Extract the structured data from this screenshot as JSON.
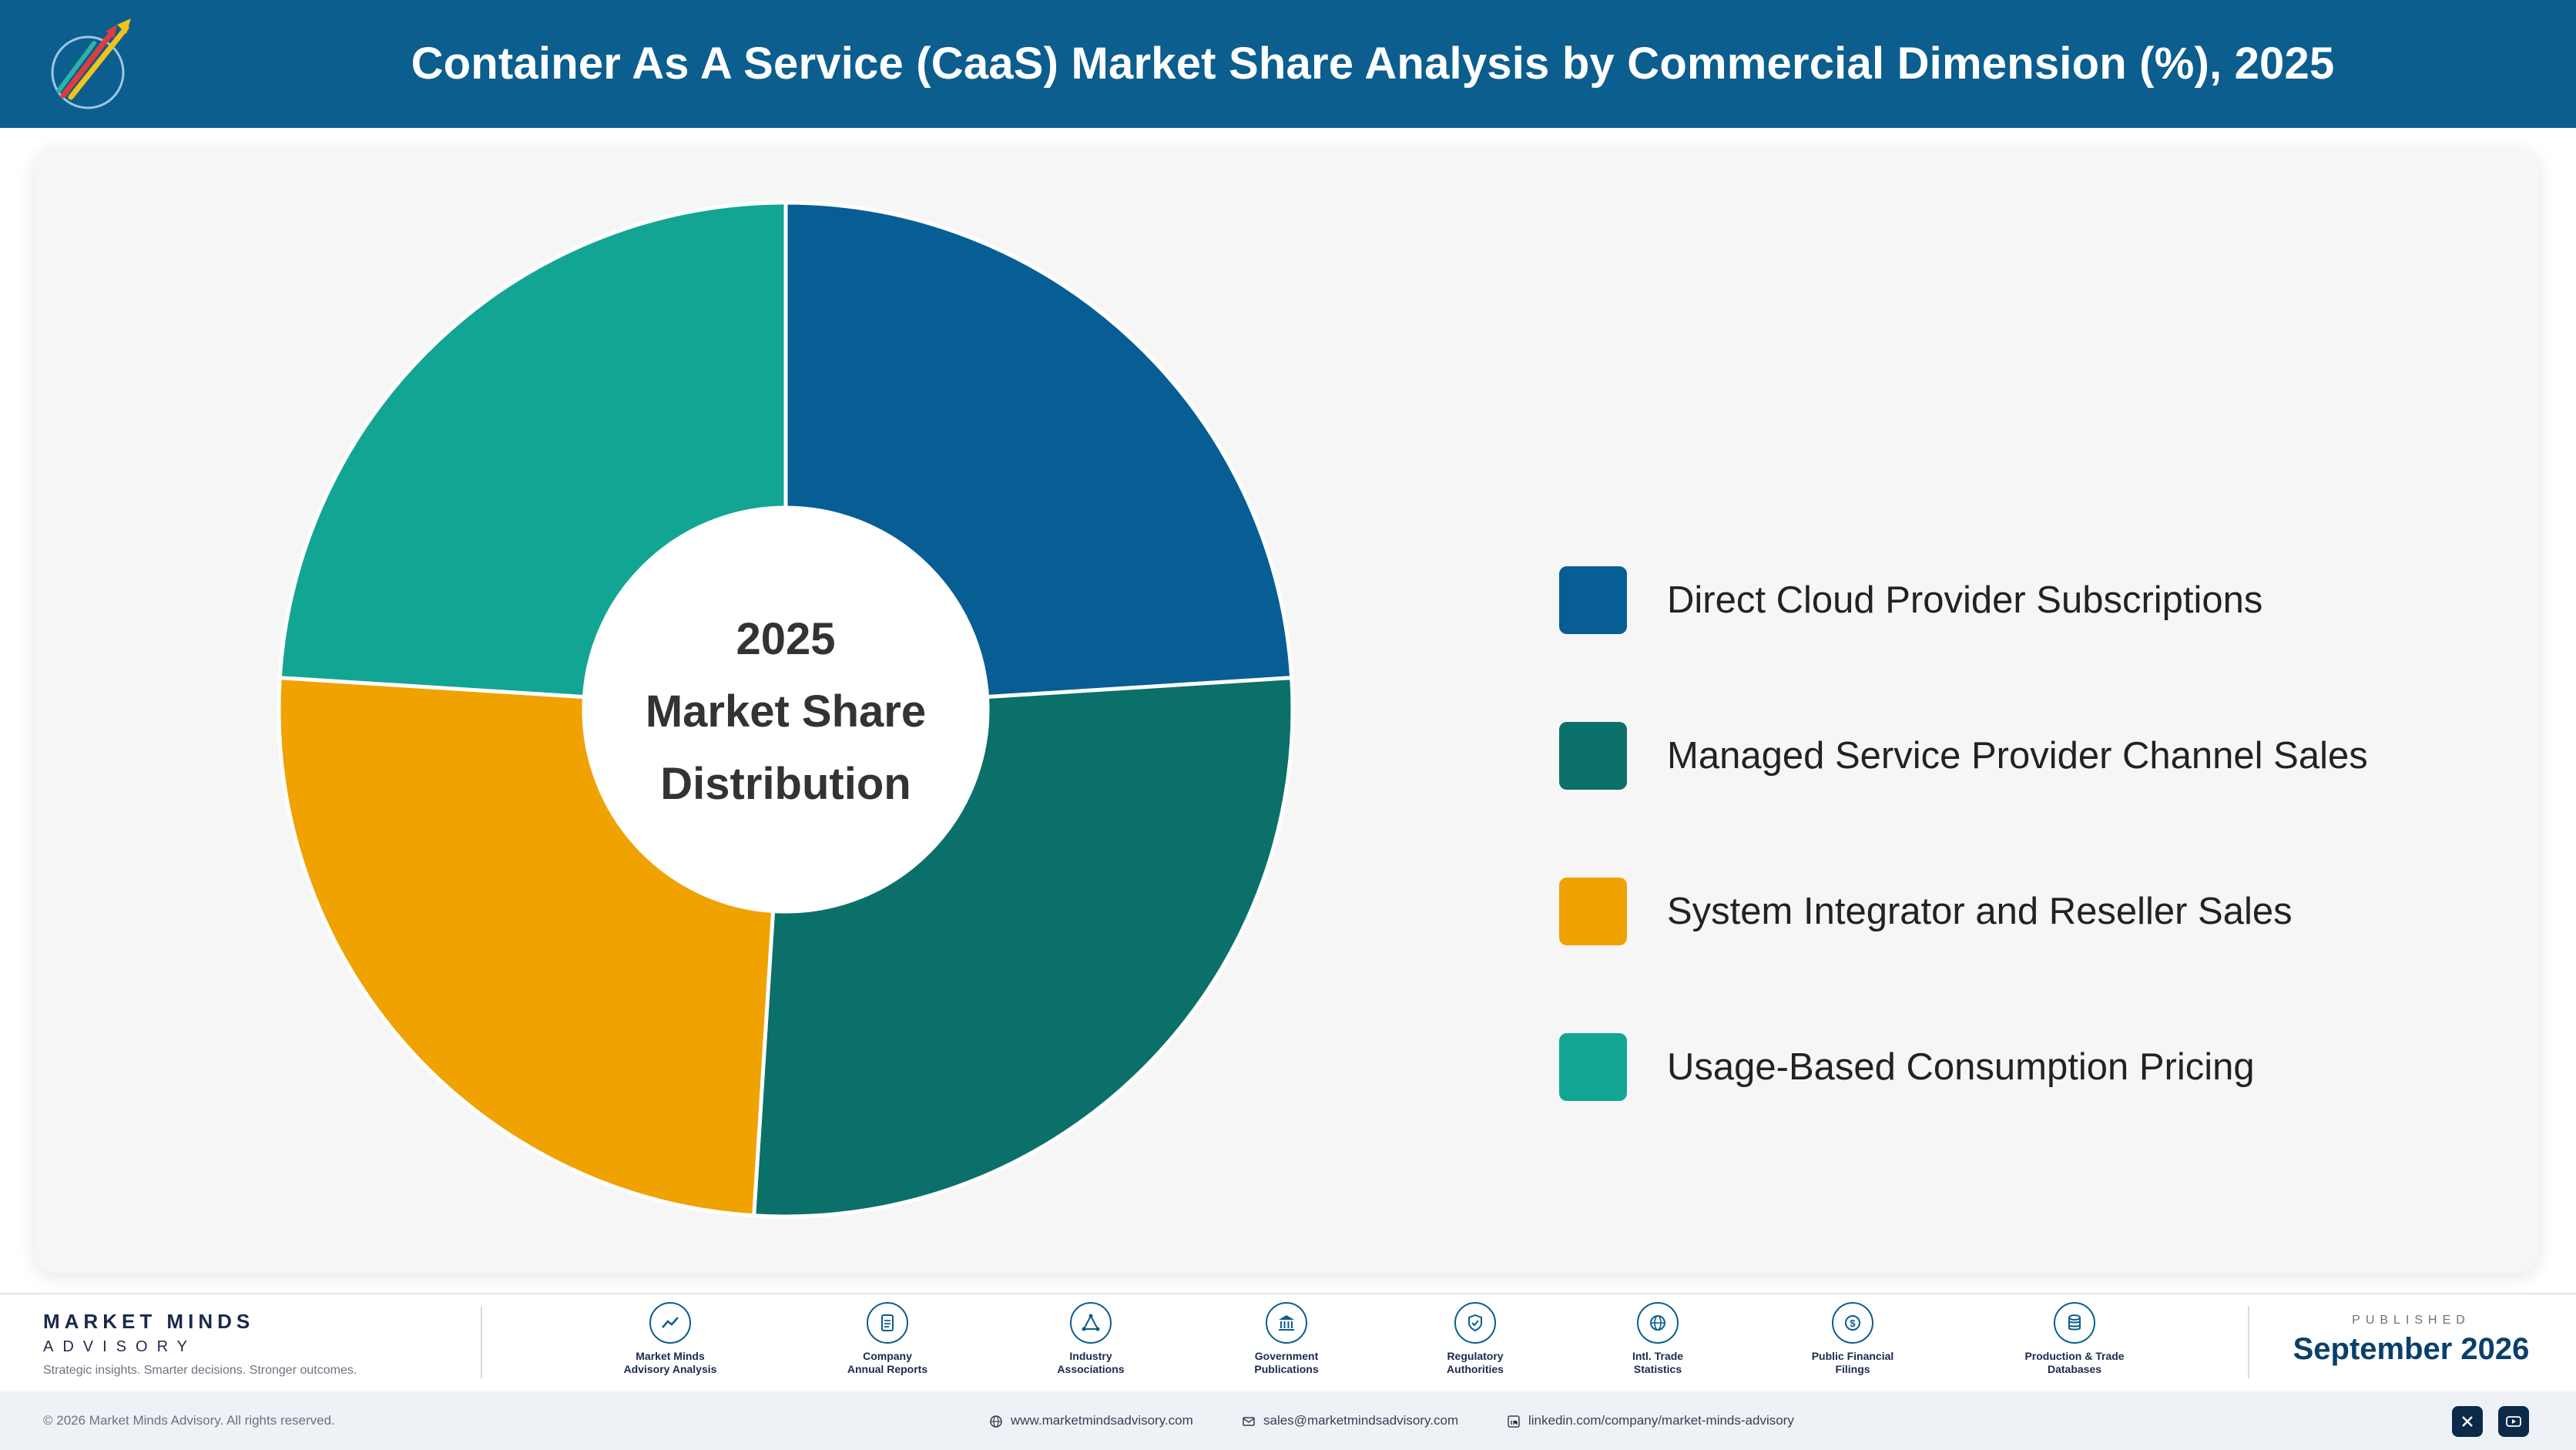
{
  "header": {
    "title": "Container As A Service (CaaS) Market Share Analysis by Commercial Dimension (%), 2025"
  },
  "chart_data": {
    "type": "pie",
    "title": "Container As A Service (CaaS) Market Share Analysis by Commercial Dimension (%), 2025",
    "center_label": [
      "2025",
      "Market Share",
      "Distribution"
    ],
    "categories": [
      "Direct Cloud Provider Subscriptions",
      "Managed Service Provider Channel Sales",
      "System Integrator and Reseller Sales",
      "Usage-Based Consumption Pricing"
    ],
    "values": [
      24,
      27,
      25,
      24
    ],
    "colors": [
      "#075e94",
      "#0b7069",
      "#f0a201",
      "#12a594"
    ],
    "legend_position": "right"
  },
  "footer": {
    "brand_name": "MARKET MINDS",
    "brand_sub": "ADVISORY",
    "tagline": "Strategic insights. Smarter decisions. Stronger outcomes.",
    "sources": [
      {
        "label": "Market Minds\nAdvisory Analysis",
        "icon": "trend-chart-icon"
      },
      {
        "label": "Company\nAnnual Reports",
        "icon": "document-icon"
      },
      {
        "label": "Industry\nAssociations",
        "icon": "network-icon"
      },
      {
        "label": "Government\nPublications",
        "icon": "government-building-icon"
      },
      {
        "label": "Regulatory\nAuthorities",
        "icon": "shield-check-icon"
      },
      {
        "label": "Intl. Trade\nStatistics",
        "icon": "globe-icon"
      },
      {
        "label": "Public Financial\nFilings",
        "icon": "dollar-coin-icon"
      },
      {
        "label": "Production & Trade\nDatabases",
        "icon": "database-icon"
      }
    ],
    "published_label": "PUBLISHED",
    "published_date": "September 2026",
    "copyright": "© 2026 Market Minds Advisory. All rights reserved.",
    "website": "www.marketmindsadvisory.com",
    "email": "sales@marketmindsadvisory.com",
    "linkedin": "linkedin.com/company/market-minds-advisory"
  }
}
